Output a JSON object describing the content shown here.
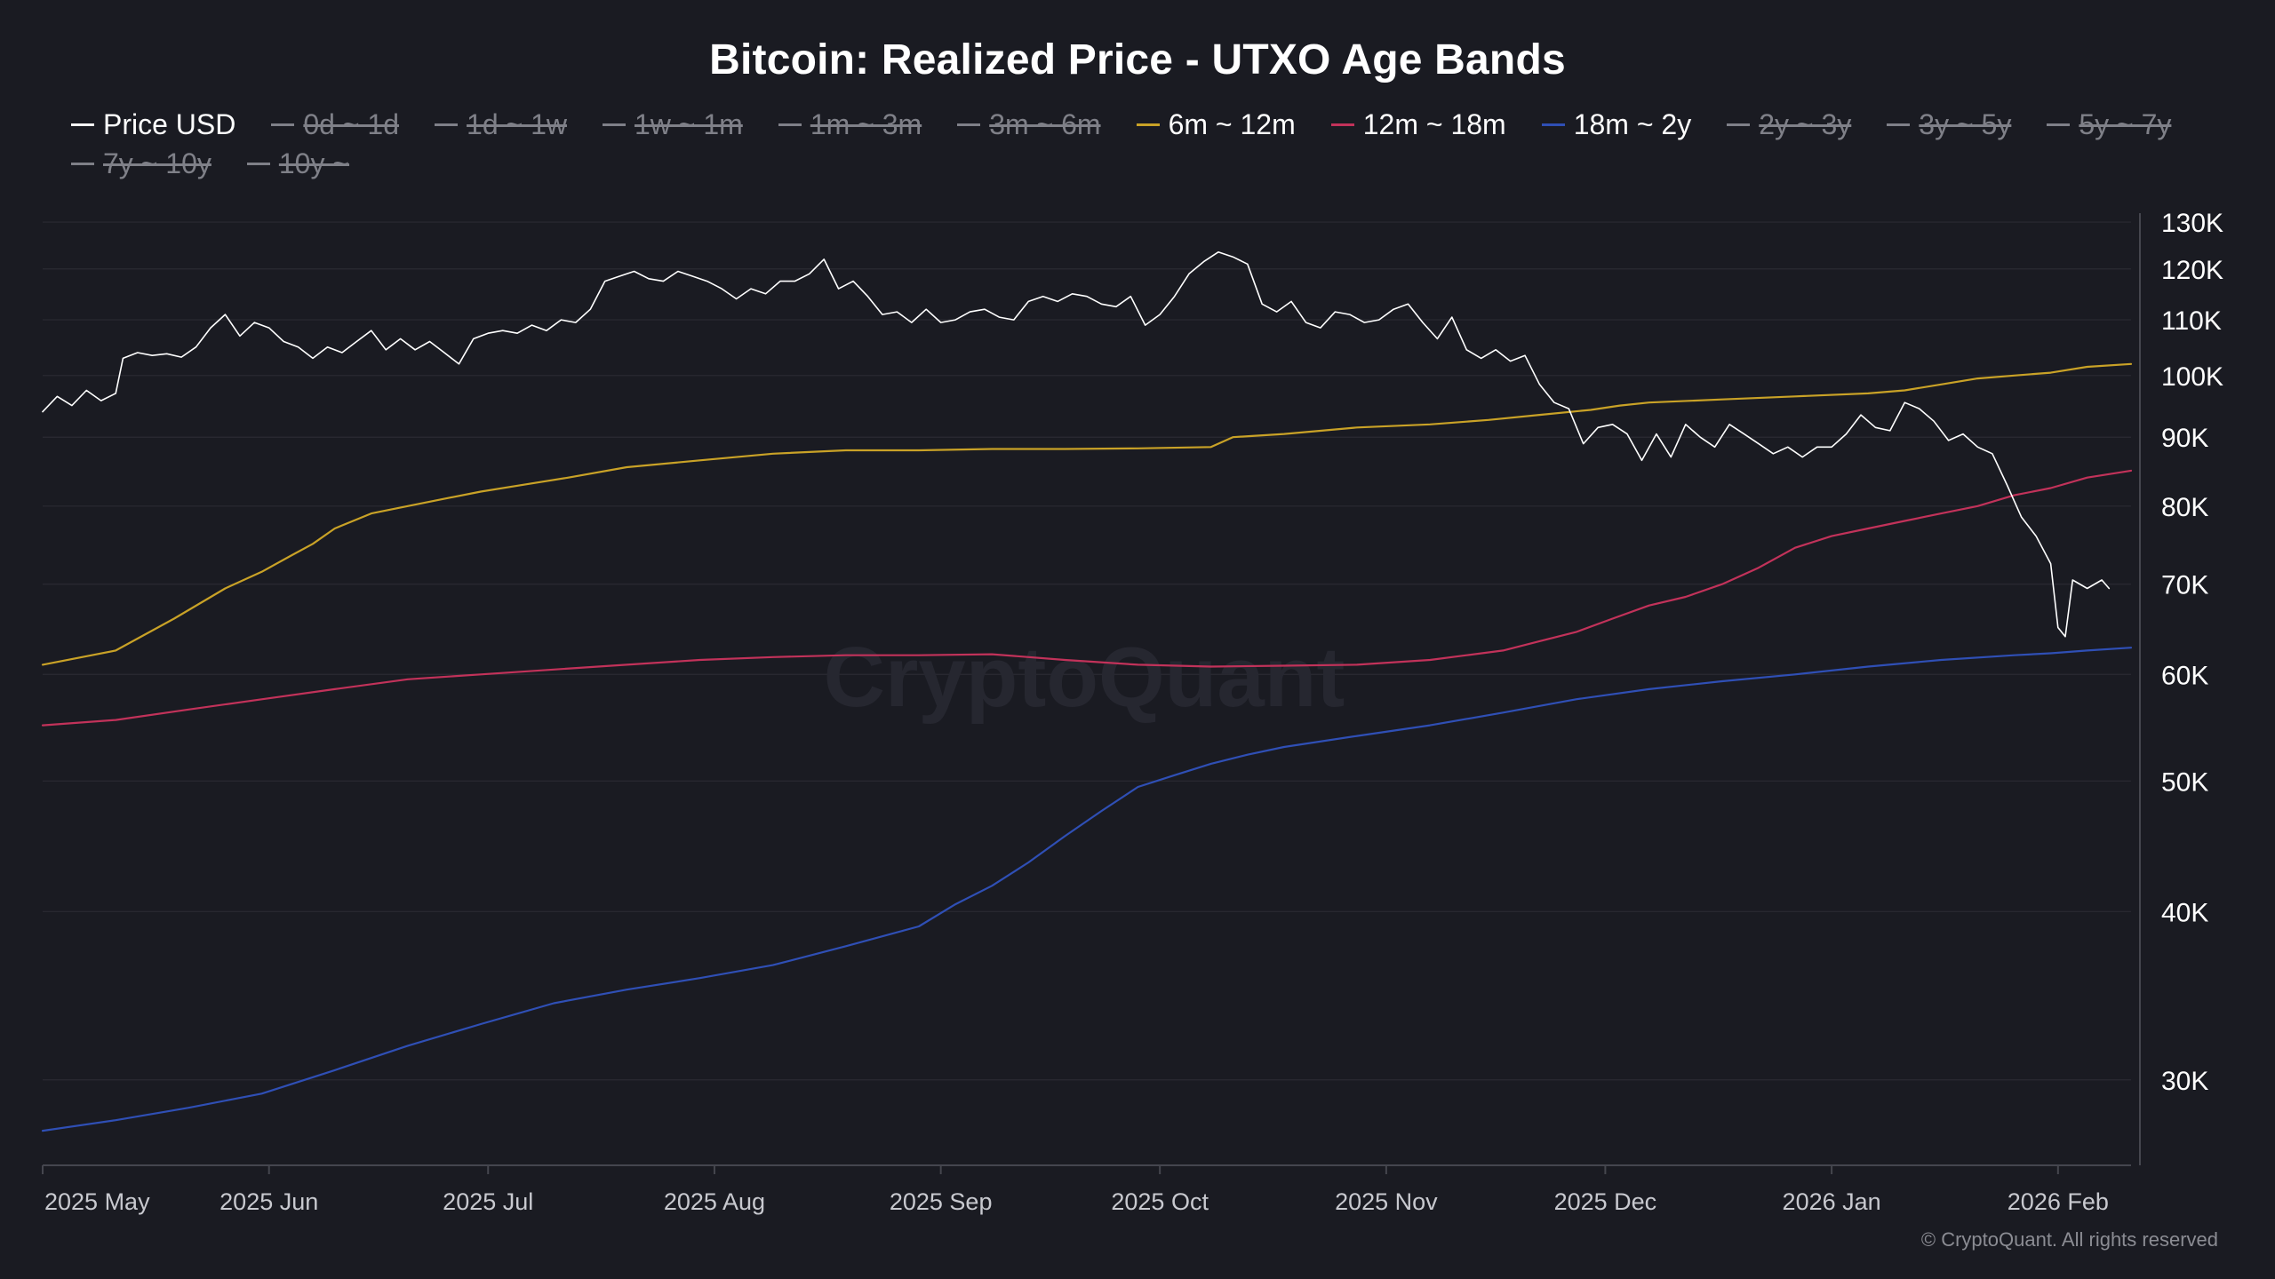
{
  "colors": {
    "background": "#1a1b22",
    "grid": "#2a2b33",
    "axis": "#45464e",
    "text": "#ffffff",
    "muted": "#8b8c93",
    "watermark": "#262730"
  },
  "watermark": "CryptoQuant",
  "copyright": "© CryptoQuant. All rights reserved",
  "legend": [
    {
      "label": "Price USD",
      "color": "#ffffff",
      "visible": true
    },
    {
      "label": "0d ~ 1d",
      "color": "#7f8088",
      "visible": false
    },
    {
      "label": "1d ~ 1w",
      "color": "#7f8088",
      "visible": false
    },
    {
      "label": "1w ~ 1m",
      "color": "#7f8088",
      "visible": false
    },
    {
      "label": "1m ~ 3m",
      "color": "#7f8088",
      "visible": false
    },
    {
      "label": "3m ~ 6m",
      "color": "#7f8088",
      "visible": false
    },
    {
      "label": "6m ~ 12m",
      "color": "#c9a227",
      "visible": true
    },
    {
      "label": "12m ~ 18m",
      "color": "#c2325a",
      "visible": true
    },
    {
      "label": "18m ~ 2y",
      "color": "#2f4fb5",
      "visible": true
    },
    {
      "label": "2y ~ 3y",
      "color": "#7f8088",
      "visible": false
    },
    {
      "label": "3y ~ 5y",
      "color": "#7f8088",
      "visible": false
    },
    {
      "label": "5y ~ 7y",
      "color": "#7f8088",
      "visible": false
    },
    {
      "label": "7y ~ 10y",
      "color": "#7f8088",
      "visible": false
    },
    {
      "label": "10y ~",
      "color": "#7f8088",
      "visible": false
    }
  ],
  "chart_data": {
    "type": "line",
    "title": "Bitcoin: Realized Price - UTXO Age Bands",
    "xlabel": "",
    "ylabel": "",
    "y_scale": "log",
    "ylim": [
      26000,
      131000
    ],
    "y_ticks": [
      30000,
      40000,
      50000,
      60000,
      70000,
      80000,
      90000,
      100000,
      110000,
      120000,
      130000
    ],
    "y_tick_labels": [
      "30K",
      "40K",
      "50K",
      "60K",
      "70K",
      "80K",
      "90K",
      "100K",
      "110K",
      "120K",
      "130K"
    ],
    "x_range_days": [
      0,
      286
    ],
    "x_ticks": [
      {
        "day": 0,
        "label": "2025 May"
      },
      {
        "day": 31,
        "label": "2025 Jun"
      },
      {
        "day": 61,
        "label": "2025 Jul"
      },
      {
        "day": 92,
        "label": "2025 Aug"
      },
      {
        "day": 123,
        "label": "2025 Sep"
      },
      {
        "day": 153,
        "label": "2025 Oct"
      },
      {
        "day": 184,
        "label": "2025 Nov"
      },
      {
        "day": 214,
        "label": "2025 Dec"
      },
      {
        "day": 245,
        "label": "2026 Jan"
      },
      {
        "day": 276,
        "label": "2026 Feb"
      }
    ],
    "grid": true,
    "series": [
      {
        "name": "Price USD",
        "color": "#ffffff",
        "width": 1.6,
        "points": [
          [
            0,
            94000
          ],
          [
            2,
            96500
          ],
          [
            4,
            95000
          ],
          [
            6,
            97500
          ],
          [
            8,
            95800
          ],
          [
            10,
            97000
          ],
          [
            11,
            103000
          ],
          [
            13,
            104000
          ],
          [
            15,
            103500
          ],
          [
            17,
            103800
          ],
          [
            19,
            103200
          ],
          [
            21,
            105000
          ],
          [
            23,
            108500
          ],
          [
            25,
            111000
          ],
          [
            27,
            107000
          ],
          [
            29,
            109500
          ],
          [
            31,
            108500
          ],
          [
            33,
            106000
          ],
          [
            35,
            105000
          ],
          [
            37,
            103000
          ],
          [
            39,
            105000
          ],
          [
            41,
            104000
          ],
          [
            43,
            106000
          ],
          [
            45,
            108000
          ],
          [
            47,
            104500
          ],
          [
            49,
            106500
          ],
          [
            51,
            104500
          ],
          [
            53,
            106000
          ],
          [
            55,
            104000
          ],
          [
            57,
            102000
          ],
          [
            59,
            106500
          ],
          [
            61,
            107500
          ],
          [
            63,
            108000
          ],
          [
            65,
            107500
          ],
          [
            67,
            109000
          ],
          [
            69,
            108000
          ],
          [
            71,
            110000
          ],
          [
            73,
            109500
          ],
          [
            75,
            112000
          ],
          [
            77,
            117500
          ],
          [
            79,
            118500
          ],
          [
            81,
            119500
          ],
          [
            83,
            118000
          ],
          [
            85,
            117500
          ],
          [
            87,
            119500
          ],
          [
            89,
            118500
          ],
          [
            91,
            117500
          ],
          [
            93,
            116000
          ],
          [
            95,
            114000
          ],
          [
            97,
            116000
          ],
          [
            99,
            115000
          ],
          [
            101,
            117500
          ],
          [
            103,
            117500
          ],
          [
            105,
            119000
          ],
          [
            107,
            122000
          ],
          [
            109,
            116000
          ],
          [
            111,
            117500
          ],
          [
            113,
            114500
          ],
          [
            115,
            111000
          ],
          [
            117,
            111500
          ],
          [
            119,
            109500
          ],
          [
            121,
            112000
          ],
          [
            123,
            109500
          ],
          [
            125,
            110000
          ],
          [
            127,
            111500
          ],
          [
            129,
            112000
          ],
          [
            131,
            110500
          ],
          [
            133,
            110000
          ],
          [
            135,
            113500
          ],
          [
            137,
            114500
          ],
          [
            139,
            113500
          ],
          [
            141,
            115000
          ],
          [
            143,
            114500
          ],
          [
            145,
            113000
          ],
          [
            147,
            112500
          ],
          [
            149,
            114500
          ],
          [
            151,
            109000
          ],
          [
            153,
            111000
          ],
          [
            155,
            114500
          ],
          [
            157,
            119000
          ],
          [
            159,
            121500
          ],
          [
            161,
            123500
          ],
          [
            163,
            122500
          ],
          [
            165,
            121000
          ],
          [
            167,
            113000
          ],
          [
            169,
            111500
          ],
          [
            171,
            113500
          ],
          [
            173,
            109500
          ],
          [
            175,
            108500
          ],
          [
            177,
            111500
          ],
          [
            179,
            111000
          ],
          [
            181,
            109500
          ],
          [
            183,
            110000
          ],
          [
            185,
            112000
          ],
          [
            187,
            113000
          ],
          [
            189,
            109500
          ],
          [
            191,
            106500
          ],
          [
            193,
            110500
          ],
          [
            195,
            104500
          ],
          [
            197,
            103000
          ],
          [
            199,
            104500
          ],
          [
            201,
            102500
          ],
          [
            203,
            103500
          ],
          [
            205,
            98500
          ],
          [
            207,
            95500
          ],
          [
            209,
            94500
          ],
          [
            211,
            89000
          ],
          [
            213,
            91500
          ],
          [
            215,
            92000
          ],
          [
            217,
            90500
          ],
          [
            219,
            86500
          ],
          [
            221,
            90500
          ],
          [
            223,
            87000
          ],
          [
            225,
            92000
          ],
          [
            227,
            90000
          ],
          [
            229,
            88500
          ],
          [
            231,
            92000
          ],
          [
            233,
            90500
          ],
          [
            235,
            89000
          ],
          [
            237,
            87500
          ],
          [
            239,
            88500
          ],
          [
            241,
            87000
          ],
          [
            243,
            88500
          ],
          [
            245,
            88500
          ],
          [
            247,
            90500
          ],
          [
            249,
            93500
          ],
          [
            251,
            91500
          ],
          [
            253,
            91000
          ],
          [
            255,
            95500
          ],
          [
            257,
            94500
          ],
          [
            259,
            92500
          ],
          [
            261,
            89500
          ],
          [
            263,
            90500
          ],
          [
            265,
            88500
          ],
          [
            267,
            87500
          ],
          [
            269,
            83000
          ],
          [
            271,
            78500
          ],
          [
            273,
            76000
          ],
          [
            275,
            72500
          ],
          [
            276,
            65000
          ],
          [
            277,
            64000
          ],
          [
            278,
            70500
          ],
          [
            280,
            69500
          ],
          [
            282,
            70500
          ],
          [
            283,
            69500
          ]
        ]
      },
      {
        "name": "6m ~ 12m",
        "color": "#c9a227",
        "width": 2.2,
        "points": [
          [
            0,
            61000
          ],
          [
            10,
            62500
          ],
          [
            18,
            66000
          ],
          [
            25,
            69500
          ],
          [
            30,
            71500
          ],
          [
            34,
            73500
          ],
          [
            37,
            75000
          ],
          [
            40,
            77000
          ],
          [
            45,
            79000
          ],
          [
            50,
            80000
          ],
          [
            55,
            81000
          ],
          [
            60,
            82000
          ],
          [
            66,
            83000
          ],
          [
            72,
            84000
          ],
          [
            80,
            85500
          ],
          [
            90,
            86500
          ],
          [
            100,
            87500
          ],
          [
            110,
            88000
          ],
          [
            120,
            88000
          ],
          [
            130,
            88200
          ],
          [
            140,
            88200
          ],
          [
            150,
            88300
          ],
          [
            160,
            88500
          ],
          [
            163,
            90000
          ],
          [
            170,
            90500
          ],
          [
            180,
            91500
          ],
          [
            190,
            92000
          ],
          [
            198,
            92700
          ],
          [
            205,
            93500
          ],
          [
            212,
            94300
          ],
          [
            216,
            95000
          ],
          [
            220,
            95500
          ],
          [
            230,
            96000
          ],
          [
            240,
            96500
          ],
          [
            250,
            97000
          ],
          [
            255,
            97500
          ],
          [
            260,
            98500
          ],
          [
            265,
            99500
          ],
          [
            270,
            100000
          ],
          [
            275,
            100500
          ],
          [
            280,
            101500
          ],
          [
            286,
            102000
          ]
        ]
      },
      {
        "name": "12m ~ 18m",
        "color": "#c2325a",
        "width": 2.2,
        "points": [
          [
            0,
            55000
          ],
          [
            10,
            55500
          ],
          [
            20,
            56500
          ],
          [
            30,
            57500
          ],
          [
            40,
            58500
          ],
          [
            50,
            59500
          ],
          [
            60,
            60000
          ],
          [
            70,
            60500
          ],
          [
            80,
            61000
          ],
          [
            90,
            61500
          ],
          [
            100,
            61800
          ],
          [
            110,
            62000
          ],
          [
            120,
            62000
          ],
          [
            130,
            62100
          ],
          [
            140,
            61500
          ],
          [
            150,
            61000
          ],
          [
            160,
            60800
          ],
          [
            170,
            60900
          ],
          [
            180,
            61000
          ],
          [
            190,
            61500
          ],
          [
            195,
            62000
          ],
          [
            200,
            62500
          ],
          [
            205,
            63500
          ],
          [
            210,
            64500
          ],
          [
            215,
            66000
          ],
          [
            220,
            67500
          ],
          [
            225,
            68500
          ],
          [
            230,
            70000
          ],
          [
            235,
            72000
          ],
          [
            240,
            74500
          ],
          [
            245,
            76000
          ],
          [
            250,
            77000
          ],
          [
            255,
            78000
          ],
          [
            260,
            79000
          ],
          [
            265,
            80000
          ],
          [
            270,
            81500
          ],
          [
            275,
            82500
          ],
          [
            280,
            84000
          ],
          [
            286,
            85000
          ]
        ]
      },
      {
        "name": "18m ~ 2y",
        "color": "#2f4fb5",
        "width": 2.2,
        "points": [
          [
            0,
            27500
          ],
          [
            10,
            28000
          ],
          [
            20,
            28600
          ],
          [
            30,
            29300
          ],
          [
            40,
            30500
          ],
          [
            50,
            31800
          ],
          [
            60,
            33000
          ],
          [
            70,
            34200
          ],
          [
            80,
            35000
          ],
          [
            90,
            35700
          ],
          [
            100,
            36500
          ],
          [
            110,
            37700
          ],
          [
            120,
            39000
          ],
          [
            125,
            40500
          ],
          [
            130,
            41800
          ],
          [
            135,
            43500
          ],
          [
            140,
            45500
          ],
          [
            145,
            47500
          ],
          [
            150,
            49500
          ],
          [
            155,
            50500
          ],
          [
            160,
            51500
          ],
          [
            165,
            52300
          ],
          [
            170,
            53000
          ],
          [
            180,
            54000
          ],
          [
            190,
            55000
          ],
          [
            200,
            56200
          ],
          [
            210,
            57500
          ],
          [
            220,
            58500
          ],
          [
            230,
            59300
          ],
          [
            240,
            60000
          ],
          [
            250,
            60800
          ],
          [
            260,
            61500
          ],
          [
            270,
            62000
          ],
          [
            275,
            62200
          ],
          [
            280,
            62500
          ],
          [
            286,
            62800
          ]
        ]
      }
    ]
  }
}
